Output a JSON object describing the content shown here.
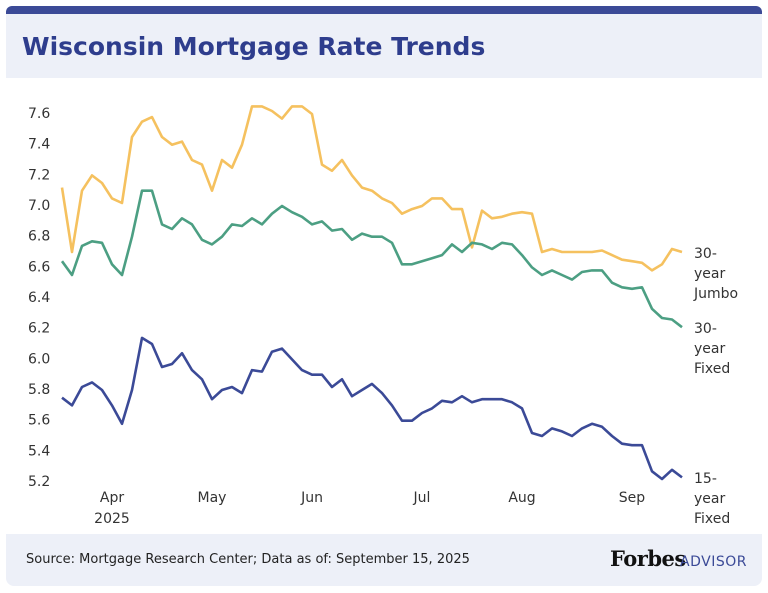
{
  "chart_data": {
    "type": "line",
    "title": "Wisconsin Mortgage Rate Trends",
    "categories": [
      null,
      null,
      null,
      null,
      null,
      "Apr",
      null,
      null,
      null,
      null,
      null,
      null,
      null,
      null,
      null,
      "May",
      null,
      null,
      null,
      null,
      null,
      null,
      null,
      null,
      null,
      "Jun",
      null,
      null,
      null,
      null,
      null,
      null,
      null,
      null,
      null,
      null,
      "Jul",
      null,
      null,
      null,
      null,
      null,
      null,
      null,
      null,
      null,
      "Aug",
      null,
      null,
      null,
      null,
      null,
      null,
      null,
      null,
      null,
      null,
      "Sep",
      null,
      null,
      null,
      null,
      null
    ],
    "x_year_label": "2025",
    "ylim": [
      5.15,
      7.7
    ],
    "yticks": [
      5.2,
      5.4,
      5.6,
      5.8,
      {
        "value": 6,
        "label": "6.0"
      },
      6.2,
      6.4,
      6.6,
      6.8,
      {
        "value": 7,
        "label": "7.0"
      },
      7.2,
      7.4,
      7.6
    ],
    "grid": false,
    "series": [
      {
        "name": "30-year Jumbo",
        "color": "#f5c15f",
        "values": [
          7.12,
          6.7,
          7.1,
          7.2,
          7.15,
          7.05,
          7.02,
          7.45,
          7.55,
          7.58,
          7.45,
          7.4,
          7.42,
          7.3,
          7.27,
          7.1,
          7.3,
          7.25,
          7.4,
          7.65,
          7.65,
          7.62,
          7.57,
          7.65,
          7.65,
          7.6,
          7.27,
          7.23,
          7.3,
          7.2,
          7.12,
          7.1,
          7.05,
          7.02,
          6.95,
          6.98,
          7.0,
          7.05,
          7.05,
          6.98,
          6.98,
          6.73,
          6.97,
          6.92,
          6.93,
          6.95,
          6.96,
          6.95,
          6.7,
          6.72,
          6.7,
          6.7,
          6.7,
          6.7,
          6.71,
          6.68,
          6.65,
          6.64,
          6.63,
          6.58,
          6.62,
          6.72,
          6.7
        ]
      },
      {
        "name": "30-year Fixed",
        "color": "#4c9f83",
        "values": [
          6.64,
          6.55,
          6.74,
          6.77,
          6.76,
          6.62,
          6.55,
          6.8,
          7.1,
          7.1,
          6.88,
          6.85,
          6.92,
          6.88,
          6.78,
          6.75,
          6.8,
          6.88,
          6.87,
          6.92,
          6.88,
          6.95,
          7.0,
          6.96,
          6.93,
          6.88,
          6.9,
          6.84,
          6.85,
          6.78,
          6.82,
          6.8,
          6.8,
          6.76,
          6.62,
          6.62,
          6.64,
          6.66,
          6.68,
          6.75,
          6.7,
          6.76,
          6.75,
          6.72,
          6.76,
          6.75,
          6.68,
          6.6,
          6.55,
          6.58,
          6.55,
          6.52,
          6.57,
          6.58,
          6.58,
          6.5,
          6.47,
          6.46,
          6.47,
          6.33,
          6.27,
          6.26,
          6.21
        ]
      },
      {
        "name": "15-year Fixed",
        "color": "#3b4a97",
        "values": [
          5.75,
          5.7,
          5.82,
          5.85,
          5.8,
          5.7,
          5.58,
          5.8,
          6.14,
          6.1,
          5.95,
          5.97,
          6.04,
          5.93,
          5.87,
          5.74,
          5.8,
          5.82,
          5.78,
          5.93,
          5.92,
          6.05,
          6.07,
          6.0,
          5.93,
          5.9,
          5.9,
          5.82,
          5.87,
          5.76,
          5.8,
          5.84,
          5.78,
          5.7,
          5.6,
          5.6,
          5.65,
          5.68,
          5.73,
          5.72,
          5.76,
          5.72,
          5.74,
          5.74,
          5.74,
          5.72,
          5.68,
          5.52,
          5.5,
          5.55,
          5.53,
          5.5,
          5.55,
          5.58,
          5.56,
          5.5,
          5.45,
          5.44,
          5.44,
          5.27,
          5.22,
          5.28,
          5.23
        ]
      }
    ],
    "source": "Source: Mortgage Research Center; Data as of: September 15, 2025"
  },
  "brand": {
    "name": "Forbes",
    "product": "ADVISOR"
  }
}
